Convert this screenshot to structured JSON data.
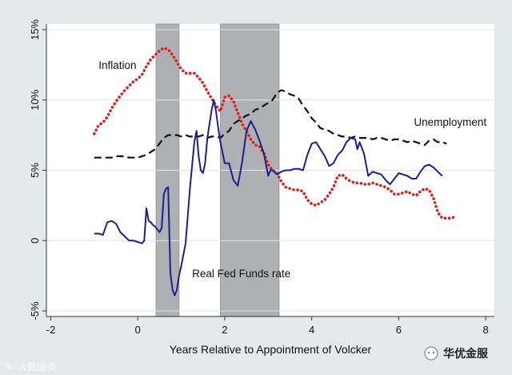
{
  "chart_data": {
    "type": "line",
    "title": "",
    "xlabel": "Years Relative to Appointment of Volcker",
    "ylabel": "",
    "xlim": [
      -2.1,
      8.2
    ],
    "ylim": [
      -5.4,
      15.4
    ],
    "x_ticks": [
      {
        "value": -2,
        "label": "-2"
      },
      {
        "value": 0,
        "label": "0"
      },
      {
        "value": 2,
        "label": "2"
      },
      {
        "value": 4,
        "label": "4"
      },
      {
        "value": 6,
        "label": "6"
      },
      {
        "value": 8,
        "label": "8"
      }
    ],
    "y_ticks": [
      {
        "value": -5,
        "label": "-5%"
      },
      {
        "value": 0,
        "label": "0"
      },
      {
        "value": 5,
        "label": "5%"
      },
      {
        "value": 10,
        "label": "10%"
      },
      {
        "value": 15,
        "label": "15%"
      }
    ],
    "grid": "horizontal",
    "shaded_periods": [
      [
        0.42,
        0.95
      ],
      [
        1.9,
        3.25
      ]
    ],
    "series": [
      {
        "name": "Inflation",
        "color": "#d6241f",
        "style": "dotted",
        "label_at": [
          -0.9,
          12.2
        ],
        "points": [
          [
            -1.0,
            7.6
          ],
          [
            -0.9,
            8.2
          ],
          [
            -0.8,
            8.4
          ],
          [
            -0.7,
            8.8
          ],
          [
            -0.6,
            9.4
          ],
          [
            -0.5,
            9.9
          ],
          [
            -0.4,
            10.3
          ],
          [
            -0.3,
            10.7
          ],
          [
            -0.2,
            11.0
          ],
          [
            -0.1,
            11.3
          ],
          [
            0.0,
            11.5
          ],
          [
            0.1,
            11.8
          ],
          [
            0.2,
            12.4
          ],
          [
            0.3,
            12.9
          ],
          [
            0.4,
            13.2
          ],
          [
            0.5,
            13.5
          ],
          [
            0.6,
            13.7
          ],
          [
            0.7,
            13.6
          ],
          [
            0.8,
            13.2
          ],
          [
            0.9,
            12.7
          ],
          [
            1.0,
            12.2
          ],
          [
            1.1,
            11.9
          ],
          [
            1.2,
            11.9
          ],
          [
            1.3,
            11.9
          ],
          [
            1.4,
            11.6
          ],
          [
            1.5,
            11.2
          ],
          [
            1.6,
            10.6
          ],
          [
            1.7,
            10.1
          ],
          [
            1.8,
            9.6
          ],
          [
            1.9,
            9.2
          ],
          [
            2.0,
            10.2
          ],
          [
            2.1,
            10.3
          ],
          [
            2.2,
            9.9
          ],
          [
            2.3,
            9.1
          ],
          [
            2.4,
            8.3
          ],
          [
            2.5,
            7.8
          ],
          [
            2.6,
            7.2
          ],
          [
            2.7,
            6.8
          ],
          [
            2.8,
            6.7
          ],
          [
            2.9,
            6.2
          ],
          [
            3.0,
            5.4
          ],
          [
            3.1,
            5.0
          ],
          [
            3.2,
            4.8
          ],
          [
            3.3,
            4.2
          ],
          [
            3.4,
            3.8
          ],
          [
            3.5,
            3.7
          ],
          [
            3.6,
            3.6
          ],
          [
            3.7,
            3.6
          ],
          [
            3.8,
            3.5
          ],
          [
            3.9,
            2.9
          ],
          [
            4.0,
            2.6
          ],
          [
            4.1,
            2.5
          ],
          [
            4.2,
            2.7
          ],
          [
            4.3,
            2.9
          ],
          [
            4.4,
            3.3
          ],
          [
            4.5,
            3.8
          ],
          [
            4.6,
            4.6
          ],
          [
            4.7,
            4.7
          ],
          [
            4.8,
            4.4
          ],
          [
            4.9,
            4.2
          ],
          [
            5.0,
            4.1
          ],
          [
            5.1,
            4.1
          ],
          [
            5.2,
            4.0
          ],
          [
            5.3,
            4.0
          ],
          [
            5.4,
            4.1
          ],
          [
            5.5,
            4.0
          ],
          [
            5.6,
            3.9
          ],
          [
            5.7,
            3.8
          ],
          [
            5.8,
            3.6
          ],
          [
            5.9,
            3.3
          ],
          [
            6.0,
            3.3
          ],
          [
            6.1,
            3.4
          ],
          [
            6.2,
            3.5
          ],
          [
            6.3,
            3.3
          ],
          [
            6.4,
            3.2
          ],
          [
            6.5,
            3.5
          ],
          [
            6.6,
            3.7
          ],
          [
            6.7,
            3.6
          ],
          [
            6.8,
            3.0
          ],
          [
            6.9,
            2.0
          ],
          [
            7.0,
            1.6
          ],
          [
            7.1,
            1.6
          ],
          [
            7.2,
            1.6
          ],
          [
            7.3,
            1.7
          ]
        ]
      },
      {
        "name": "Unemployment",
        "color": "#111111",
        "style": "dashed",
        "label_at": [
          6.35,
          8.15
        ],
        "points": [
          [
            -1.0,
            5.9
          ],
          [
            -0.9,
            5.9
          ],
          [
            -0.8,
            5.9
          ],
          [
            -0.7,
            5.9
          ],
          [
            -0.6,
            5.9
          ],
          [
            -0.5,
            6.0
          ],
          [
            -0.4,
            6.0
          ],
          [
            -0.3,
            6.0
          ],
          [
            -0.2,
            5.9
          ],
          [
            -0.1,
            5.9
          ],
          [
            0.0,
            5.9
          ],
          [
            0.1,
            6.0
          ],
          [
            0.2,
            6.1
          ],
          [
            0.3,
            6.3
          ],
          [
            0.4,
            6.5
          ],
          [
            0.5,
            6.9
          ],
          [
            0.6,
            7.3
          ],
          [
            0.7,
            7.5
          ],
          [
            0.8,
            7.5
          ],
          [
            0.9,
            7.5
          ],
          [
            1.0,
            7.4
          ],
          [
            1.1,
            7.5
          ],
          [
            1.2,
            7.4
          ],
          [
            1.3,
            7.4
          ],
          [
            1.4,
            7.4
          ],
          [
            1.5,
            7.5
          ],
          [
            1.6,
            7.3
          ],
          [
            1.7,
            7.4
          ],
          [
            1.8,
            7.4
          ],
          [
            1.9,
            7.3
          ],
          [
            2.0,
            7.6
          ],
          [
            2.1,
            7.8
          ],
          [
            2.2,
            8.3
          ],
          [
            2.3,
            8.5
          ],
          [
            2.4,
            8.7
          ],
          [
            2.5,
            8.9
          ],
          [
            2.6,
            9.0
          ],
          [
            2.7,
            9.3
          ],
          [
            2.8,
            9.4
          ],
          [
            2.9,
            9.6
          ],
          [
            3.0,
            9.8
          ],
          [
            3.1,
            10.0
          ],
          [
            3.2,
            10.5
          ],
          [
            3.3,
            10.7
          ],
          [
            3.4,
            10.6
          ],
          [
            3.5,
            10.4
          ],
          [
            3.6,
            10.3
          ],
          [
            3.7,
            10.1
          ],
          [
            3.8,
            9.6
          ],
          [
            3.9,
            9.2
          ],
          [
            4.0,
            8.7
          ],
          [
            4.1,
            8.4
          ],
          [
            4.2,
            8.0
          ],
          [
            4.3,
            7.9
          ],
          [
            4.4,
            7.8
          ],
          [
            4.5,
            7.6
          ],
          [
            4.6,
            7.5
          ],
          [
            4.7,
            7.4
          ],
          [
            4.8,
            7.4
          ],
          [
            4.9,
            7.3
          ],
          [
            5.0,
            7.4
          ],
          [
            5.1,
            7.3
          ],
          [
            5.2,
            7.3
          ],
          [
            5.3,
            7.3
          ],
          [
            5.4,
            7.2
          ],
          [
            5.5,
            7.3
          ],
          [
            5.6,
            7.3
          ],
          [
            5.7,
            7.2
          ],
          [
            5.8,
            7.1
          ],
          [
            5.9,
            7.2
          ],
          [
            6.0,
            7.2
          ],
          [
            6.1,
            7.1
          ],
          [
            6.2,
            7.0
          ],
          [
            6.3,
            7.1
          ],
          [
            6.4,
            7.0
          ],
          [
            6.5,
            6.9
          ],
          [
            6.6,
            6.8
          ],
          [
            6.7,
            7.1
          ],
          [
            6.8,
            7.2
          ],
          [
            6.9,
            7.0
          ],
          [
            7.0,
            7.0
          ],
          [
            7.1,
            6.9
          ]
        ]
      },
      {
        "name": "Real Fed Funds rate",
        "color": "#1c1f8f",
        "style": "solid",
        "label_at": [
          1.25,
          -2.6
        ],
        "points": [
          [
            -1.0,
            0.5
          ],
          [
            -0.9,
            0.5
          ],
          [
            -0.8,
            0.4
          ],
          [
            -0.7,
            1.3
          ],
          [
            -0.6,
            1.4
          ],
          [
            -0.5,
            1.2
          ],
          [
            -0.4,
            0.6
          ],
          [
            -0.3,
            0.3
          ],
          [
            -0.2,
            0.0
          ],
          [
            -0.1,
            0.0
          ],
          [
            0.0,
            -0.1
          ],
          [
            0.1,
            -0.2
          ],
          [
            0.15,
            0.0
          ],
          [
            0.2,
            2.3
          ],
          [
            0.25,
            1.4
          ],
          [
            0.3,
            1.3
          ],
          [
            0.35,
            1.1
          ],
          [
            0.4,
            1.0
          ],
          [
            0.45,
            0.8
          ],
          [
            0.5,
            0.6
          ],
          [
            0.55,
            0.9
          ],
          [
            0.6,
            3.3
          ],
          [
            0.65,
            3.7
          ],
          [
            0.7,
            3.8
          ],
          [
            0.75,
            -2.3
          ],
          [
            0.8,
            -3.5
          ],
          [
            0.85,
            -3.9
          ],
          [
            0.9,
            -3.5
          ],
          [
            0.95,
            -2.5
          ],
          [
            1.0,
            -1.8
          ],
          [
            1.1,
            -0.2
          ],
          [
            1.2,
            3.7
          ],
          [
            1.3,
            7.0
          ],
          [
            1.35,
            7.8
          ],
          [
            1.4,
            6.0
          ],
          [
            1.45,
            5.0
          ],
          [
            1.5,
            4.8
          ],
          [
            1.55,
            5.5
          ],
          [
            1.6,
            7.3
          ],
          [
            1.7,
            9.3
          ],
          [
            1.75,
            10.0
          ],
          [
            1.8,
            9.2
          ],
          [
            1.85,
            8.0
          ],
          [
            1.9,
            7.0
          ],
          [
            2.0,
            5.5
          ],
          [
            2.1,
            5.5
          ],
          [
            2.2,
            4.3
          ],
          [
            2.3,
            3.9
          ],
          [
            2.4,
            5.6
          ],
          [
            2.5,
            7.8
          ],
          [
            2.6,
            8.5
          ],
          [
            2.7,
            7.9
          ],
          [
            2.8,
            7.1
          ],
          [
            2.9,
            6.2
          ],
          [
            3.0,
            4.6
          ],
          [
            3.05,
            5.0
          ],
          [
            3.1,
            5.0
          ],
          [
            3.2,
            4.7
          ],
          [
            3.3,
            4.9
          ],
          [
            3.4,
            5.0
          ],
          [
            3.5,
            5.0
          ],
          [
            3.6,
            5.1
          ],
          [
            3.7,
            5.1
          ],
          [
            3.8,
            5.0
          ],
          [
            3.9,
            6.1
          ],
          [
            4.0,
            6.9
          ],
          [
            4.1,
            7.0
          ],
          [
            4.2,
            6.5
          ],
          [
            4.3,
            6.0
          ],
          [
            4.4,
            5.3
          ],
          [
            4.5,
            5.5
          ],
          [
            4.6,
            6.1
          ],
          [
            4.7,
            6.4
          ],
          [
            4.8,
            7.0
          ],
          [
            4.9,
            7.3
          ],
          [
            5.0,
            7.2
          ],
          [
            5.05,
            6.5
          ],
          [
            5.1,
            7.0
          ],
          [
            5.2,
            6.2
          ],
          [
            5.3,
            4.6
          ],
          [
            5.4,
            4.9
          ],
          [
            5.5,
            4.8
          ],
          [
            5.6,
            4.7
          ],
          [
            5.7,
            4.3
          ],
          [
            5.8,
            4.0
          ],
          [
            5.9,
            4.4
          ],
          [
            6.0,
            4.8
          ],
          [
            6.1,
            4.7
          ],
          [
            6.2,
            4.6
          ],
          [
            6.3,
            4.4
          ],
          [
            6.4,
            4.4
          ],
          [
            6.5,
            4.9
          ],
          [
            6.6,
            5.3
          ],
          [
            6.7,
            5.4
          ],
          [
            6.8,
            5.2
          ],
          [
            6.9,
            4.9
          ],
          [
            7.0,
            4.6
          ]
        ]
      }
    ]
  },
  "watermarks": {
    "left_text": "大数据谈",
    "right_text": "华优金服"
  }
}
